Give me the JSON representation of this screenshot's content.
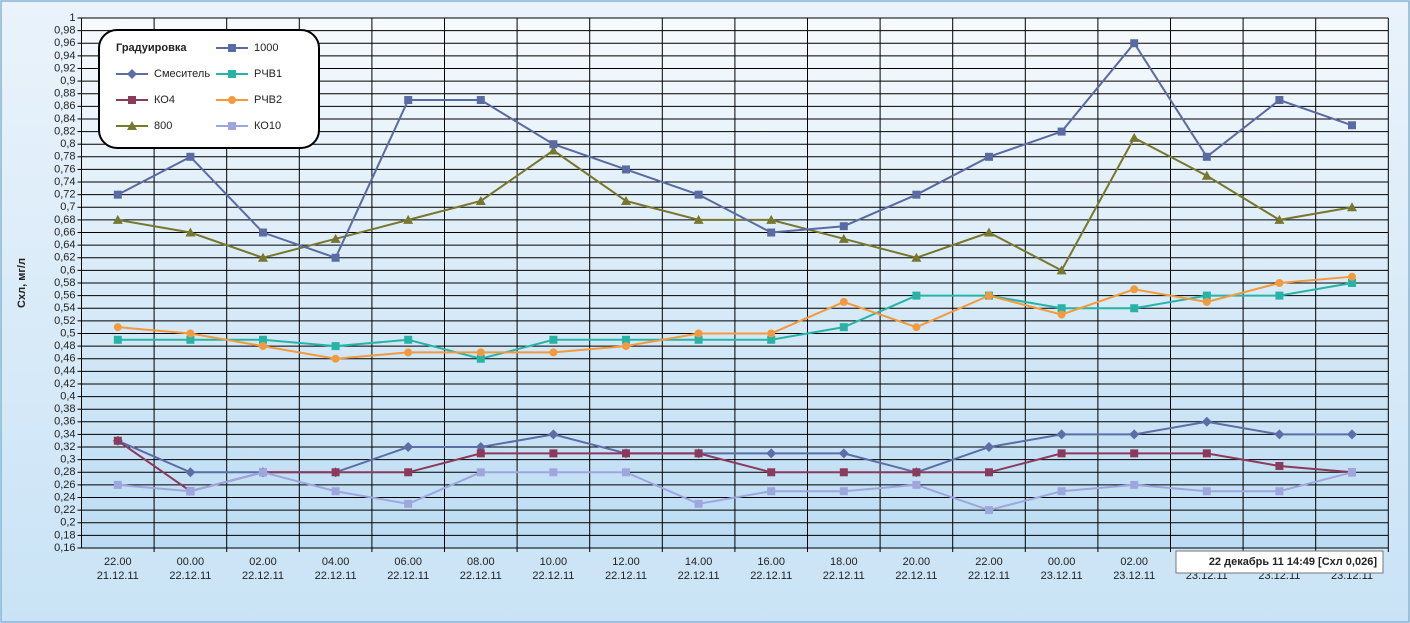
{
  "chart_data": {
    "type": "line",
    "y_label": "Схл, мг/л",
    "annotation": "22 декабрь 11  14:49  [Схл 0,026]",
    "legend_title": "Градуировка",
    "grid": true,
    "legend": "top-left",
    "categories": [
      [
        "22.00",
        "21.12.11"
      ],
      [
        "00.00",
        "22.12.11"
      ],
      [
        "02.00",
        "22.12.11"
      ],
      [
        "04.00",
        "22.12.11"
      ],
      [
        "06.00",
        "22.12.11"
      ],
      [
        "08.00",
        "22.12.11"
      ],
      [
        "10.00",
        "22.12.11"
      ],
      [
        "12.00",
        "22.12.11"
      ],
      [
        "14.00",
        "22.12.11"
      ],
      [
        "16.00",
        "22.12.11"
      ],
      [
        "18.00",
        "22.12.11"
      ],
      [
        "20.00",
        "22.12.11"
      ],
      [
        "22.00",
        "22.12.11"
      ],
      [
        "00.00",
        "23.12.11"
      ],
      [
        "02.00",
        "23.12.11"
      ],
      [
        "04.00",
        "23.12.11"
      ],
      [
        "06.00",
        "23.12.11"
      ],
      [
        "08.00",
        "23.12.11"
      ]
    ],
    "ylim": [
      0.16,
      1
    ],
    "yticks": [
      1,
      {
        "value": 0.98,
        "label": "0,98"
      },
      {
        "value": 0.96,
        "label": "0,96"
      },
      {
        "value": 0.94,
        "label": "0,94"
      },
      {
        "value": 0.92,
        "label": "0,92"
      },
      {
        "value": 0.9,
        "label": "0,9"
      },
      {
        "value": 0.88,
        "label": "0,88"
      },
      {
        "value": 0.86,
        "label": "0,86"
      },
      {
        "value": 0.84,
        "label": "0,84"
      },
      {
        "value": 0.82,
        "label": "0,82"
      },
      {
        "value": 0.8,
        "label": "0,8"
      },
      {
        "value": 0.78,
        "label": "0,78"
      },
      {
        "value": 0.76,
        "label": "0,76"
      },
      {
        "value": 0.74,
        "label": "0,74"
      },
      {
        "value": 0.72,
        "label": "0,72"
      },
      {
        "value": 0.7,
        "label": "0,7"
      },
      {
        "value": 0.68,
        "label": "0,68"
      },
      {
        "value": 0.66,
        "label": "0,66"
      },
      {
        "value": 0.64,
        "label": "0,64"
      },
      {
        "value": 0.62,
        "label": "0,62"
      },
      {
        "value": 0.6,
        "label": "0,6"
      },
      {
        "value": 0.58,
        "label": "0,58"
      },
      {
        "value": 0.56,
        "label": "0,56"
      },
      {
        "value": 0.54,
        "label": "0,54"
      },
      {
        "value": 0.52,
        "label": "0,52"
      },
      {
        "value": 0.5,
        "label": "0,5"
      },
      {
        "value": 0.48,
        "label": "0,48"
      },
      {
        "value": 0.46,
        "label": "0,46"
      },
      {
        "value": 0.44,
        "label": "0,44"
      },
      {
        "value": 0.42,
        "label": "0,42"
      },
      {
        "value": 0.4,
        "label": "0,4"
      },
      {
        "value": 0.38,
        "label": "0,38"
      },
      {
        "value": 0.36,
        "label": "0,36"
      },
      {
        "value": 0.34,
        "label": "0,34"
      },
      {
        "value": 0.32,
        "label": "0,32"
      },
      {
        "value": 0.3,
        "label": "0,3"
      },
      {
        "value": 0.28,
        "label": "0,28"
      },
      {
        "value": 0.26,
        "label": "0,26"
      },
      {
        "value": 0.24,
        "label": "0,24"
      },
      {
        "value": 0.22,
        "label": "0,22"
      },
      {
        "value": 0.2,
        "label": "0,2"
      },
      {
        "value": 0.18,
        "label": "0,18"
      },
      {
        "value": 0.16,
        "label": "0,16"
      }
    ],
    "series": [
      {
        "name": "Смеситель",
        "color": "#5b6ea6",
        "marker": "diamond",
        "values": [
          0.33,
          0.28,
          0.28,
          0.28,
          0.32,
          0.32,
          0.34,
          0.31,
          0.31,
          0.31,
          0.31,
          0.28,
          0.32,
          0.34,
          0.34,
          0.36,
          0.34,
          0.34
        ]
      },
      {
        "name": "КО4",
        "color": "#8c3a5c",
        "marker": "square",
        "values": [
          0.33,
          0.25,
          0.28,
          0.28,
          0.28,
          0.31,
          0.31,
          0.31,
          0.31,
          0.28,
          0.28,
          0.28,
          0.28,
          0.31,
          0.31,
          0.31,
          0.29,
          0.28
        ]
      },
      {
        "name": "800",
        "color": "#77772e",
        "marker": "triangle",
        "values": [
          0.68,
          0.66,
          0.62,
          0.65,
          0.68,
          0.71,
          0.79,
          0.71,
          0.68,
          0.68,
          0.65,
          0.62,
          0.66,
          0.6,
          0.81,
          0.75,
          0.68,
          0.7
        ]
      },
      {
        "name": "1000",
        "color": "#5a6aa2",
        "marker": "square",
        "values": [
          0.72,
          0.78,
          0.66,
          0.62,
          0.87,
          0.87,
          0.8,
          0.76,
          0.72,
          0.66,
          0.67,
          0.72,
          0.78,
          0.82,
          0.96,
          0.78,
          0.87,
          0.83
        ]
      },
      {
        "name": "РЧВ1",
        "color": "#27b4a6",
        "marker": "square",
        "values": [
          0.49,
          0.49,
          0.49,
          0.48,
          0.49,
          0.46,
          0.49,
          0.49,
          0.49,
          0.49,
          0.51,
          0.56,
          0.56,
          0.54,
          0.54,
          0.56,
          0.56,
          0.58
        ]
      },
      {
        "name": "РЧВ2",
        "color": "#f39a3c",
        "marker": "circle",
        "values": [
          0.51,
          0.5,
          0.48,
          0.46,
          0.47,
          0.47,
          0.47,
          0.48,
          0.5,
          0.5,
          0.55,
          0.51,
          0.56,
          0.53,
          0.57,
          0.55,
          0.58,
          0.59
        ]
      },
      {
        "name": "КО10",
        "color": "#9ea7dd",
        "marker": "square",
        "values": [
          0.26,
          0.25,
          0.28,
          0.25,
          0.23,
          0.28,
          0.28,
          0.28,
          0.23,
          0.25,
          0.25,
          0.26,
          0.22,
          0.25,
          0.26,
          0.25,
          0.25,
          0.28
        ]
      }
    ]
  }
}
